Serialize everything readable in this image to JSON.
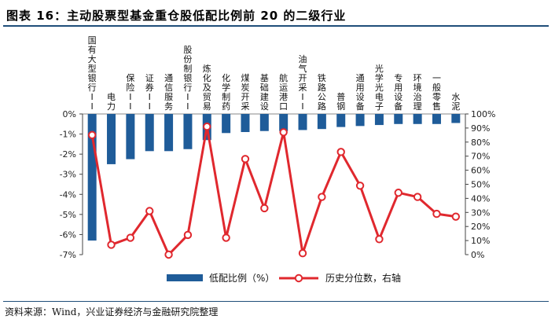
{
  "header": {
    "title": "图表 16：主动股票型基金重仓股低配比例前 20 的二级行业"
  },
  "footer": {
    "source": "资料来源：Wind，兴业证券经济与金融研究院整理"
  },
  "colors": {
    "bar": "#1f5c99",
    "line": "#e0282e",
    "rule": "#1f4e79"
  },
  "chart_data": {
    "type": "bar",
    "title": "主动股票型基金重仓股低配比例前 20 的二级行业",
    "categories": [
      "国有大型银行II",
      "电力",
      "保险II",
      "证券II",
      "通信服务",
      "股份制银行II",
      "炼化及贸易",
      "化学制药",
      "煤炭开采",
      "基础建设",
      "航运港口",
      "油气开采II",
      "铁路公路",
      "普钢",
      "通用设备",
      "光学光电子",
      "专用设备",
      "环境治理",
      "一般零售",
      "水泥"
    ],
    "series": [
      {
        "name": "低配比例（%）",
        "type": "bar",
        "axis": "left",
        "values": [
          -6.3,
          -2.5,
          -2.25,
          -1.85,
          -1.85,
          -1.75,
          -1.3,
          -0.95,
          -0.9,
          -0.85,
          -0.85,
          -0.8,
          -0.75,
          -0.65,
          -0.6,
          -0.55,
          -0.5,
          -0.5,
          -0.5,
          -0.45
        ]
      },
      {
        "name": "历史分位数，右轴",
        "type": "line",
        "axis": "right",
        "values": [
          85,
          7,
          12,
          31,
          0,
          14,
          91,
          12,
          68,
          33,
          87,
          1,
          41,
          73,
          49,
          11,
          44,
          41,
          29,
          27
        ]
      }
    ],
    "y_left": {
      "min": -7,
      "max": 0,
      "step": 1,
      "tick_labels": [
        "0%",
        "-1%",
        "-2%",
        "-3%",
        "-4%",
        "-5%",
        "-6%",
        "-7%"
      ]
    },
    "y_right": {
      "min": 0,
      "max": 100,
      "step": 10,
      "tick_labels": [
        "100%",
        "90%",
        "80%",
        "70%",
        "60%",
        "50%",
        "40%",
        "30%",
        "20%",
        "10%",
        "0%"
      ]
    },
    "legend": [
      "低配比例（%）",
      "历史分位数，右轴"
    ],
    "legend_position": "bottom"
  }
}
